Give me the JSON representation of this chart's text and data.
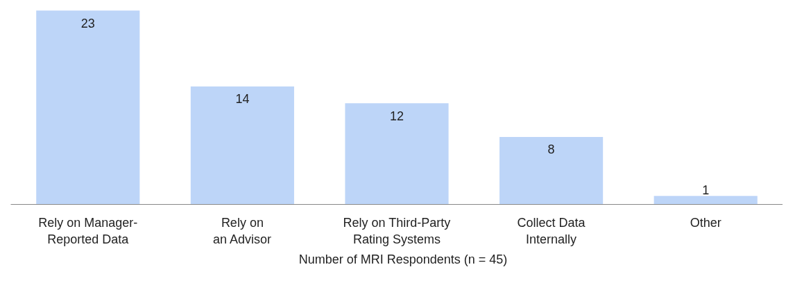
{
  "chart_data": {
    "type": "bar",
    "categories": [
      "Rely on Manager-\nReported Data",
      "Rely on\nan Advisor",
      "Rely on Third-Party\nRating Systems",
      "Collect Data\nInternally",
      "Other"
    ],
    "series": [
      {
        "name": "Number of MRI Respondents (n = 45)",
        "color": "#bdd5f8",
        "values": [
          23,
          14,
          12,
          8,
          1
        ]
      }
    ],
    "data_labels": true,
    "legend": "bottom"
  }
}
